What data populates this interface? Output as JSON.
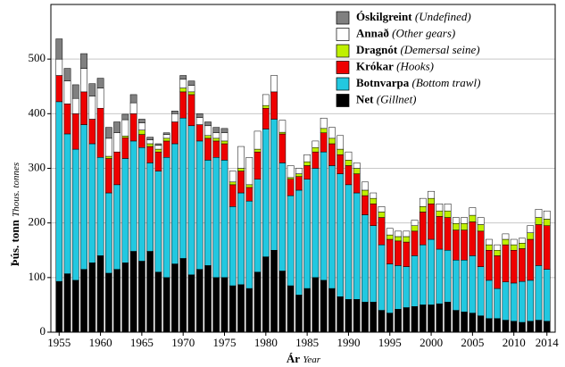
{
  "chart_data": {
    "type": "stacked_bar",
    "ylabel": "Þús. tonn",
    "ylabel_en": "Thous. tonnes",
    "xlabel": "Ár",
    "xlabel_en": "Year",
    "x": [
      1955,
      1956,
      1957,
      1958,
      1959,
      1960,
      1961,
      1962,
      1963,
      1964,
      1965,
      1966,
      1967,
      1968,
      1969,
      1970,
      1971,
      1972,
      1973,
      1974,
      1975,
      1976,
      1977,
      1978,
      1979,
      1980,
      1981,
      1982,
      1983,
      1984,
      1985,
      1986,
      1987,
      1988,
      1989,
      1990,
      1991,
      1992,
      1993,
      1994,
      1995,
      1996,
      1997,
      1998,
      1999,
      2000,
      2001,
      2002,
      2003,
      2004,
      2005,
      2006,
      2007,
      2008,
      2009,
      2010,
      2011,
      2012,
      2013,
      2014
    ],
    "xlim": [
      1954,
      2015
    ],
    "xticks": [
      1955,
      1960,
      1965,
      1970,
      1975,
      1980,
      1985,
      1990,
      1995,
      2000,
      2005,
      2010,
      2014
    ],
    "ylim": [
      0,
      600
    ],
    "yticks": [
      0,
      100,
      200,
      300,
      400,
      500
    ],
    "grid": true,
    "legend": "upper right",
    "series": [
      {
        "name": "Net",
        "name_en": "(Gillnet)",
        "color": "#000000",
        "values": [
          93,
          107,
          95,
          115,
          127,
          140,
          108,
          115,
          127,
          148,
          130,
          148,
          110,
          100,
          125,
          135,
          105,
          115,
          122,
          100,
          100,
          85,
          87,
          80,
          110,
          138,
          150,
          112,
          85,
          68,
          80,
          100,
          95,
          80,
          65,
          60,
          60,
          55,
          55,
          40,
          35,
          42,
          45,
          47,
          50,
          50,
          52,
          55,
          40,
          37,
          35,
          30,
          25,
          25,
          22,
          20,
          18,
          20,
          22,
          20
        ]
      },
      {
        "name": "Botnvarpa",
        "name_en": "(Bottom trawl)",
        "color": "#22c8e0",
        "values": [
          329,
          256,
          240,
          265,
          218,
          180,
          147,
          155,
          191,
          202,
          208,
          162,
          185,
          220,
          220,
          257,
          273,
          235,
          193,
          220,
          215,
          145,
          168,
          160,
          170,
          234,
          240,
          198,
          165,
          192,
          200,
          200,
          235,
          225,
          225,
          210,
          195,
          160,
          140,
          120,
          90,
          80,
          75,
          93,
          110,
          120,
          100,
          95,
          92,
          95,
          105,
          90,
          70,
          55,
          70,
          70,
          75,
          75,
          100,
          95
        ]
      },
      {
        "name": "Krókar",
        "name_en": "(Hooks)",
        "color": "#ee0000",
        "values": [
          48,
          55,
          65,
          60,
          45,
          90,
          63,
          60,
          38,
          50,
          24,
          30,
          35,
          30,
          40,
          48,
          57,
          30,
          40,
          30,
          30,
          40,
          40,
          25,
          50,
          38,
          50,
          53,
          30,
          25,
          25,
          30,
          35,
          40,
          35,
          35,
          35,
          35,
          40,
          50,
          45,
          45,
          45,
          45,
          60,
          65,
          60,
          60,
          55,
          55,
          62,
          65,
          55,
          60,
          68,
          60,
          60,
          75,
          75,
          80
        ]
      },
      {
        "name": "Dragnót",
        "name_en": "(Demersal seine)",
        "color": "#bff000",
        "values": [
          0,
          0,
          0,
          0,
          0,
          0,
          4,
          0,
          3,
          0,
          8,
          5,
          5,
          5,
          0,
          7,
          5,
          0,
          5,
          5,
          5,
          5,
          5,
          5,
          5,
          5,
          0,
          3,
          3,
          5,
          7,
          8,
          8,
          10,
          10,
          10,
          10,
          10,
          10,
          10,
          8,
          8,
          10,
          10,
          10,
          10,
          10,
          12,
          12,
          12,
          12,
          12,
          10,
          10,
          10,
          10,
          10,
          12,
          13,
          12
        ]
      },
      {
        "name": "Annað",
        "name_en": "(Other gears)",
        "color": "#ffffff",
        "values": [
          30,
          42,
          28,
          43,
          42,
          37,
          33,
          35,
          30,
          20,
          13,
          7,
          7,
          7,
          15,
          16,
          12,
          13,
          18,
          10,
          15,
          20,
          40,
          50,
          33,
          20,
          30,
          22,
          22,
          10,
          13,
          12,
          19,
          20,
          25,
          15,
          10,
          15,
          10,
          10,
          12,
          10,
          10,
          10,
          15,
          13,
          13,
          13,
          11,
          11,
          14,
          13,
          10,
          10,
          10,
          10,
          9,
          13,
          15,
          15
        ]
      },
      {
        "name": "Óskilgreint",
        "name_en": "(Undefined)",
        "color": "#808080",
        "values": [
          37,
          23,
          25,
          27,
          23,
          18,
          20,
          20,
          10,
          15,
          7,
          5,
          3,
          3,
          5,
          7,
          8,
          7,
          7,
          10,
          8,
          0,
          0,
          0,
          0,
          0,
          0,
          0,
          0,
          0,
          0,
          0,
          0,
          0,
          0,
          0,
          0,
          0,
          0,
          0,
          0,
          0,
          0,
          0,
          0,
          0,
          0,
          0,
          0,
          0,
          0,
          0,
          0,
          0,
          0,
          0,
          0,
          0,
          0,
          0
        ]
      }
    ]
  }
}
